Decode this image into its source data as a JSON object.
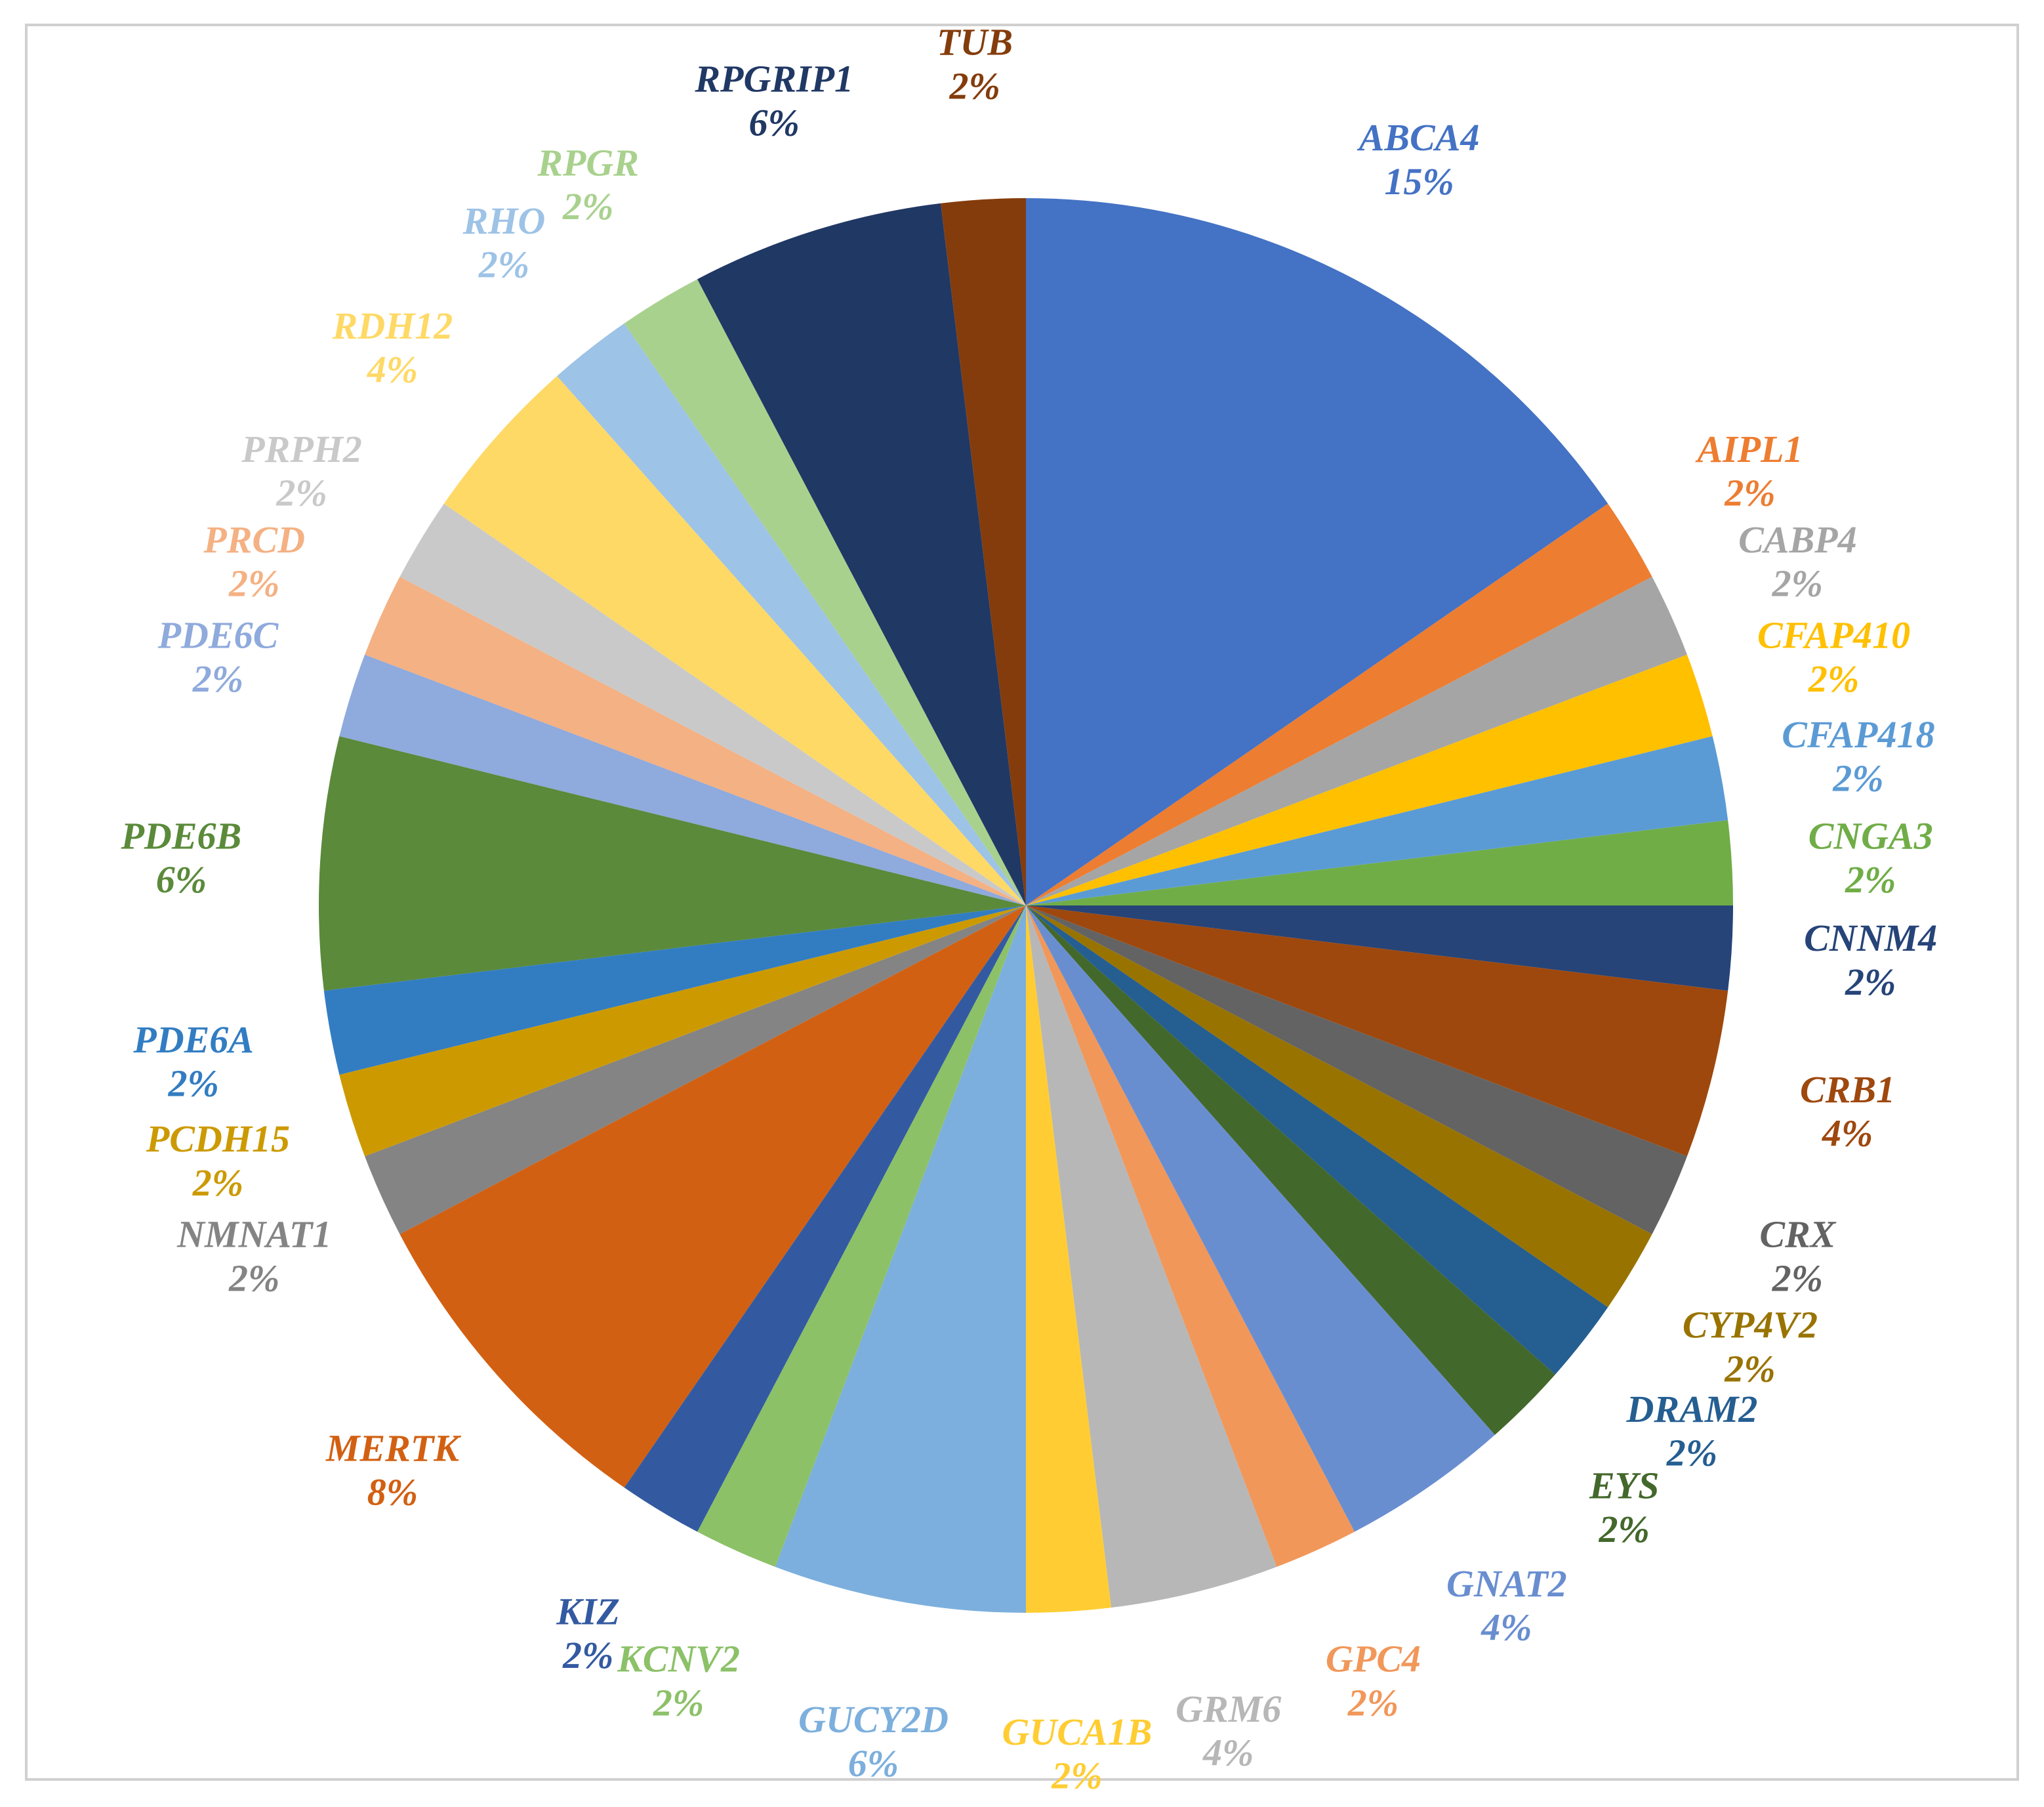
{
  "chart_data": {
    "type": "pie",
    "title": "",
    "slices": [
      {
        "name": "ABCA4",
        "label": "15%",
        "value": 8,
        "color": "#4472C4"
      },
      {
        "name": "AIPL1",
        "label": "2%",
        "value": 1,
        "color": "#ED7D31"
      },
      {
        "name": "CABP4",
        "label": "2%",
        "value": 1,
        "color": "#A5A5A5"
      },
      {
        "name": "CFAP410",
        "label": "2%",
        "value": 1,
        "color": "#FFC000"
      },
      {
        "name": "CFAP418",
        "label": "2%",
        "value": 1,
        "color": "#5B9BD5"
      },
      {
        "name": "CNGA3",
        "label": "2%",
        "value": 1,
        "color": "#70AD47"
      },
      {
        "name": "CNNM4",
        "label": "2%",
        "value": 1,
        "color": "#264478"
      },
      {
        "name": "CRB1",
        "label": "4%",
        "value": 2,
        "color": "#9E480E"
      },
      {
        "name": "CRX",
        "label": "2%",
        "value": 1,
        "color": "#636363"
      },
      {
        "name": "CYP4V2",
        "label": "2%",
        "value": 1,
        "color": "#997300"
      },
      {
        "name": "DRAM2",
        "label": "2%",
        "value": 1,
        "color": "#255E91"
      },
      {
        "name": "EYS",
        "label": "2%",
        "value": 1,
        "color": "#43682B"
      },
      {
        "name": "GNAT2",
        "label": "4%",
        "value": 2,
        "color": "#698ED0"
      },
      {
        "name": "GPC4",
        "label": "2%",
        "value": 1,
        "color": "#F1975A"
      },
      {
        "name": "GRM6",
        "label": "4%",
        "value": 2,
        "color": "#B7B7B7"
      },
      {
        "name": "GUCA1B",
        "label": "2%",
        "value": 1,
        "color": "#FFCD33"
      },
      {
        "name": "GUCY2D",
        "label": "6%",
        "value": 3,
        "color": "#7CAFDD"
      },
      {
        "name": "KCNV2",
        "label": "2%",
        "value": 1,
        "color": "#8CC168"
      },
      {
        "name": "KIZ",
        "label": "2%",
        "value": 1,
        "color": "#335AA1"
      },
      {
        "name": "MERTK",
        "label": "8%",
        "value": 4,
        "color": "#D26012"
      },
      {
        "name": "NMNAT1",
        "label": "2%",
        "value": 1,
        "color": "#848484"
      },
      {
        "name": "PCDH15",
        "label": "2%",
        "value": 1,
        "color": "#CC9A00"
      },
      {
        "name": "PDE6A",
        "label": "2%",
        "value": 1,
        "color": "#327DC2"
      },
      {
        "name": "PDE6B",
        "label": "6%",
        "value": 3,
        "color": "#5A8A3A"
      },
      {
        "name": "PDE6C",
        "label": "2%",
        "value": 1,
        "color": "#8FAADC"
      },
      {
        "name": "PRCD",
        "label": "2%",
        "value": 1,
        "color": "#F4B183"
      },
      {
        "name": "PRPH2",
        "label": "2%",
        "value": 1,
        "color": "#C9C9C9"
      },
      {
        "name": "RDH12",
        "label": "4%",
        "value": 2,
        "color": "#FFD966"
      },
      {
        "name": "RHO",
        "label": "2%",
        "value": 1,
        "color": "#9DC3E6"
      },
      {
        "name": "RPGR",
        "label": "2%",
        "value": 1,
        "color": "#A9D18E"
      },
      {
        "name": "RPGRIP1",
        "label": "6%",
        "value": 3,
        "color": "#203864"
      },
      {
        "name": "TUB",
        "label": "2%",
        "value": 1,
        "color": "#843C0C"
      }
    ]
  }
}
